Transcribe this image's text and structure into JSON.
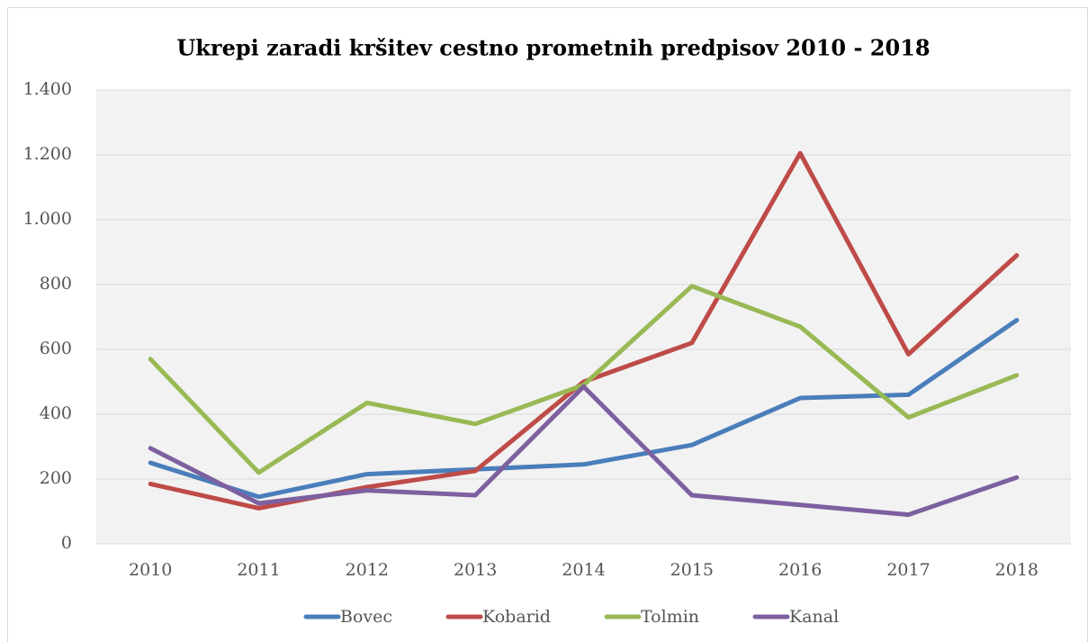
{
  "chart_data": {
    "type": "line",
    "title": "Ukrepi zaradi kršitev cestno prometnih predpisov 2010 - 2018",
    "categories": [
      "2010",
      "2011",
      "2012",
      "2013",
      "2014",
      "2015",
      "2016",
      "2017",
      "2018"
    ],
    "series": [
      {
        "name": "Bovec",
        "color": "#4a7ebb",
        "values": [
          250,
          145,
          215,
          230,
          245,
          305,
          450,
          460,
          690
        ]
      },
      {
        "name": "Kobarid",
        "color": "#be4b48",
        "values": [
          185,
          110,
          175,
          225,
          500,
          620,
          1205,
          585,
          890
        ]
      },
      {
        "name": "Tolmin",
        "color": "#98b954",
        "values": [
          570,
          220,
          435,
          370,
          490,
          795,
          670,
          390,
          520
        ]
      },
      {
        "name": "Kanal",
        "color": "#7d60a0",
        "values": [
          295,
          125,
          165,
          150,
          485,
          150,
          120,
          90,
          205
        ]
      }
    ],
    "ylim": [
      0,
      1400
    ],
    "yticks": [
      0,
      200,
      400,
      600,
      800,
      {
        "value": 1000,
        "label": "1.000"
      },
      {
        "value": 1200,
        "label": "1.200"
      },
      {
        "value": 1400,
        "label": "1.400"
      }
    ],
    "grid": true,
    "legend": "bottom"
  }
}
